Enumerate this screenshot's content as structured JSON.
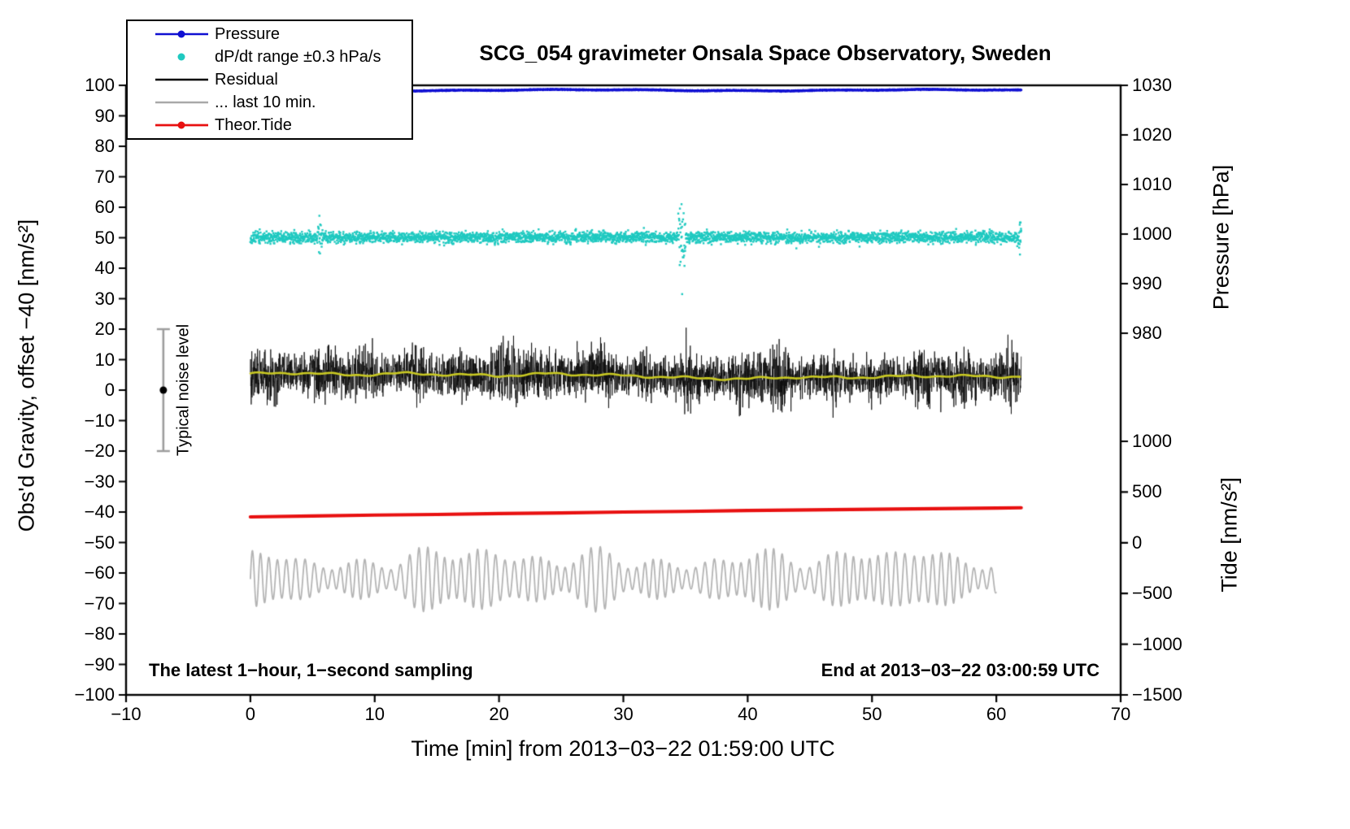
{
  "notes": {
    "left": "The latest 1−hour, 1−second sampling",
    "right": "End at 2013−03−22 03:00:59 UTC"
  },
  "legend": [
    {
      "label": "Pressure",
      "color": "#0f0fd2",
      "marker": "line-dot",
      "lw": 2.6,
      "icon": "blue-line-dot-marker"
    },
    {
      "label": "dP/dt range ±0.3 hPa/s",
      "color": "#1fc9c0",
      "marker": "dot",
      "lw": 2.6,
      "icon": "cyan-dot-marker"
    },
    {
      "label": "Residual",
      "color": "#000000",
      "marker": "line",
      "lw": 2.4,
      "icon": "black-line-marker"
    },
    {
      "label": "... last 10 min.",
      "color": "#a9a9a9",
      "marker": "line",
      "lw": 2.6,
      "icon": "gray-line-marker"
    },
    {
      "label": "Theor.Tide",
      "color": "#e81010",
      "marker": "line-dot",
      "lw": 2.8,
      "icon": "red-line-dot-marker"
    }
  ],
  "chart_data": {
    "type": "line",
    "title": "SCG_054 gravimeter Onsala Space Observatory, Sweden",
    "x_axis": {
      "label": "Time [min] from 2013−03−22 01:59:00 UTC",
      "min": -10,
      "max": 70,
      "ticks": [
        {
          "v": -10,
          "label": "−10"
        },
        {
          "v": 0,
          "label": "0"
        },
        {
          "v": 10,
          "label": "10"
        },
        {
          "v": 20,
          "label": "20"
        },
        {
          "v": 30,
          "label": "30"
        },
        {
          "v": 40,
          "label": "40"
        },
        {
          "v": 50,
          "label": "50"
        },
        {
          "v": 60,
          "label": "60"
        },
        {
          "v": 70,
          "label": "70"
        }
      ]
    },
    "y_axis_left": {
      "label": "Obs'd Gravity, offset −40 [nm/s²]",
      "min": -100,
      "max": 100,
      "ticks": [
        {
          "v": 100,
          "label": "100"
        },
        {
          "v": 90,
          "label": "90"
        },
        {
          "v": 80,
          "label": "80"
        },
        {
          "v": 70,
          "label": "70"
        },
        {
          "v": 60,
          "label": "60"
        },
        {
          "v": 50,
          "label": "50"
        },
        {
          "v": 40,
          "label": "40"
        },
        {
          "v": 30,
          "label": "30"
        },
        {
          "v": 20,
          "label": "20"
        },
        {
          "v": 10,
          "label": "10"
        },
        {
          "v": 0,
          "label": "0"
        },
        {
          "v": -10,
          "label": "−10"
        },
        {
          "v": -20,
          "label": "−20"
        },
        {
          "v": -30,
          "label": "−30"
        },
        {
          "v": -40,
          "label": "−40"
        },
        {
          "v": -50,
          "label": "−50"
        },
        {
          "v": -60,
          "label": "−60"
        },
        {
          "v": -70,
          "label": "−70"
        },
        {
          "v": -80,
          "label": "−80"
        },
        {
          "v": -90,
          "label": "−90"
        },
        {
          "v": -100,
          "label": "−100"
        }
      ]
    },
    "y_axis_pressure": {
      "label": "Pressure [hPa]",
      "ticks": [
        {
          "v": 1030,
          "label": "1030"
        },
        {
          "v": 1020,
          "label": "1020"
        },
        {
          "v": 1010,
          "label": "1010"
        },
        {
          "v": 1000,
          "label": "1000"
        },
        {
          "v": 990,
          "label": "990"
        },
        {
          "v": 980,
          "label": "980"
        }
      ]
    },
    "y_axis_tide": {
      "label": "Tide [nm/s²]",
      "ticks": [
        {
          "v": 1000,
          "label": "1000"
        },
        {
          "v": 500,
          "label": "500"
        },
        {
          "v": 0,
          "label": "0"
        },
        {
          "v": -500,
          "label": "−500"
        },
        {
          "v": -1000,
          "label": "−1000"
        },
        {
          "v": -1500,
          "label": "−1500"
        }
      ]
    },
    "noise_bar": {
      "x": -7,
      "center": 0,
      "half_height": 20,
      "color": "#9e9e9e",
      "dot_color": "#000000",
      "label": "Typical noise level"
    },
    "series": [
      {
        "id": "pressure",
        "name": "Pressure",
        "color": "#0f0fd2",
        "style": "line",
        "linewidth": 3.2,
        "x_start": 0,
        "x_end": 62,
        "baseline_left_units": 98.4,
        "noise_sd": 0.05,
        "approx_value_hPa": 1028.8
      },
      {
        "id": "dpdt",
        "name": "dP/dt range ±0.3 hPa/s",
        "color": "#1fc9c0",
        "style": "scatter",
        "x_start": 0,
        "x_end": 62,
        "baseline_left_units": 50.1,
        "noise_sd": 0.9,
        "center_hPa": 1000,
        "band_hPa_per_s": 0.3,
        "outlier_events": [
          {
            "x": 5.6,
            "half_width": 0.2,
            "sd": 2.2
          },
          {
            "x": 34.7,
            "half_width": 0.3,
            "sd": 4.2
          },
          {
            "x": 61.9,
            "half_width": 0.25,
            "sd": 2.2
          }
        ],
        "extreme_points": [
          [
            34.68,
            61
          ],
          [
            34.73,
            31.5
          ],
          [
            5.55,
            57.2
          ],
          [
            61.95,
            55
          ],
          [
            61.9,
            44.5
          ]
        ]
      },
      {
        "id": "residual",
        "name": "Residual",
        "color": "#0a0a0a",
        "style": "line",
        "linewidth": 0.8,
        "x_start": 0,
        "x_end": 62,
        "mean_left_units": 5,
        "typical_sd": 4.5,
        "range": [
          -12.5,
          20.5
        ],
        "spike": {
          "x": 35.05,
          "value": 20.5
        }
      },
      {
        "id": "residual_smooth",
        "name": "Residual smoothed",
        "color": "#c9c922",
        "style": "line",
        "linewidth": 2.6,
        "points_x": [
          0,
          4,
          8,
          12,
          16,
          20,
          24,
          28,
          32,
          36,
          40,
          44,
          48,
          52,
          56,
          60,
          62
        ],
        "points_y": [
          5.3,
          5.7,
          4.9,
          5.5,
          5.1,
          4.7,
          5.4,
          5.0,
          4.5,
          3.9,
          3.7,
          4.3,
          4.1,
          4.5,
          4.7,
          4.4,
          4.5
        ]
      },
      {
        "id": "last10",
        "name": "... last 10 min.",
        "color": "#b4b4b4",
        "style": "line",
        "linewidth": 1.8,
        "x_start": 0,
        "x_end": 60,
        "center_left_units": -62,
        "carrier_period_min": 0.7,
        "amp_min": 3,
        "amp_max": 15
      },
      {
        "id": "tide",
        "name": "Theor.Tide",
        "color": "#e81010",
        "style": "line",
        "linewidth": 4.2,
        "points_x": [
          0,
          5,
          10,
          15,
          20,
          25,
          30,
          35,
          40,
          45,
          50,
          55,
          60,
          62
        ],
        "points_y": [
          -41.6,
          -41.3,
          -41.0,
          -40.8,
          -40.5,
          -40.3,
          -40.0,
          -39.8,
          -39.5,
          -39.3,
          -39.1,
          -38.9,
          -38.7,
          -38.6
        ],
        "approx_tide_start_nm_s2": 250,
        "approx_tide_end_nm_s2": 330
      }
    ]
  }
}
